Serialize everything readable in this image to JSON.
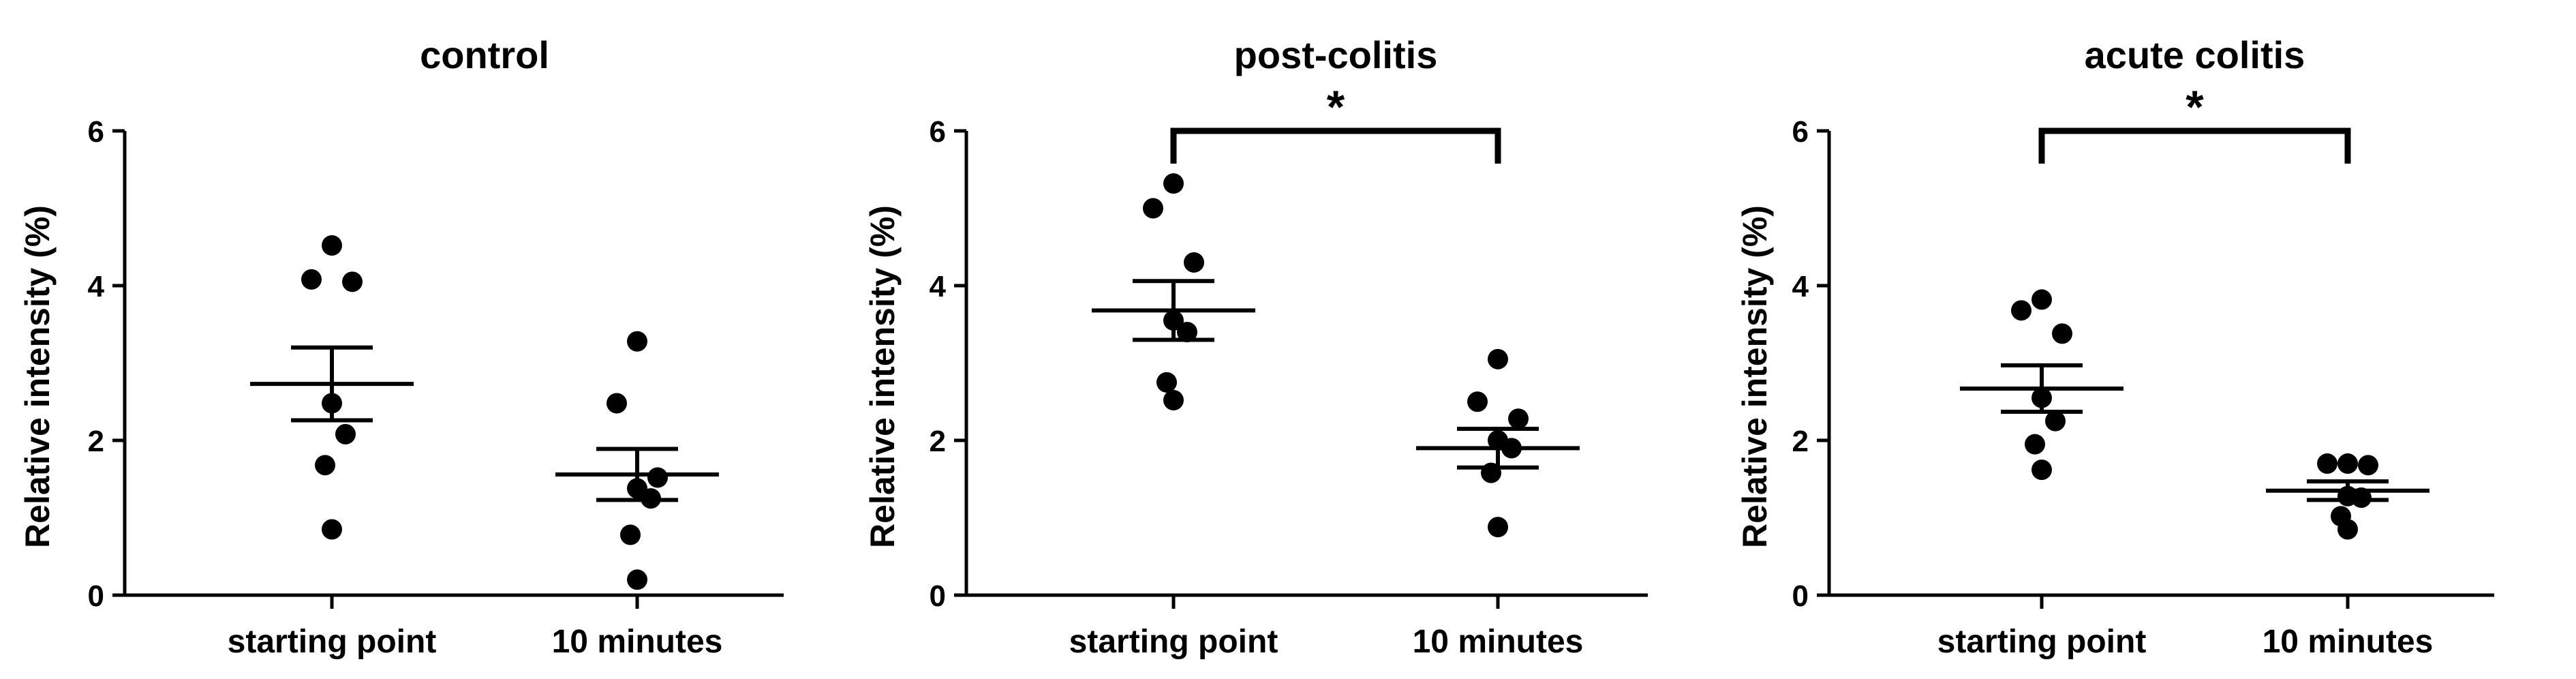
{
  "chart_data": [
    {
      "type": "scatter",
      "title": "control",
      "ylabel": "Relative intensity (%)",
      "categories": [
        "starting point",
        "10 minutes"
      ],
      "ylim": [
        0,
        6
      ],
      "yticks": [
        0,
        2,
        4,
        6
      ],
      "points": [
        [
          4.52,
          4.08,
          4.05,
          2.48,
          2.08,
          1.68,
          0.85
        ],
        [
          3.28,
          2.48,
          1.52,
          1.38,
          1.25,
          0.78,
          0.2
        ]
      ],
      "mean": [
        2.73,
        1.56
      ],
      "sem": [
        0.47,
        0.33
      ],
      "significance": null
    },
    {
      "type": "scatter",
      "title": "post-colitis",
      "ylabel": "Relative intensity (%)",
      "categories": [
        "starting point",
        "10 minutes"
      ],
      "ylim": [
        0,
        6
      ],
      "yticks": [
        0,
        2,
        4,
        6
      ],
      "points": [
        [
          5.32,
          5.0,
          4.3,
          3.55,
          3.4,
          2.75,
          2.52
        ],
        [
          3.05,
          2.5,
          2.28,
          2.0,
          1.9,
          1.58,
          0.88
        ]
      ],
      "mean": [
        3.68,
        1.9
      ],
      "sem": [
        0.38,
        0.25
      ],
      "significance": "*"
    },
    {
      "type": "scatter",
      "title": "acute colitis",
      "ylabel": "Relative intensity (%)",
      "categories": [
        "starting point",
        "10 minutes"
      ],
      "ylim": [
        0,
        6
      ],
      "yticks": [
        0,
        2,
        4,
        6
      ],
      "points": [
        [
          3.82,
          3.68,
          3.38,
          2.55,
          2.25,
          1.95,
          1.62
        ],
        [
          1.7,
          1.7,
          1.68,
          1.28,
          1.26,
          1.02,
          0.85
        ]
      ],
      "mean": [
        2.67,
        1.35
      ],
      "sem": [
        0.3,
        0.12
      ],
      "significance": "*"
    }
  ]
}
